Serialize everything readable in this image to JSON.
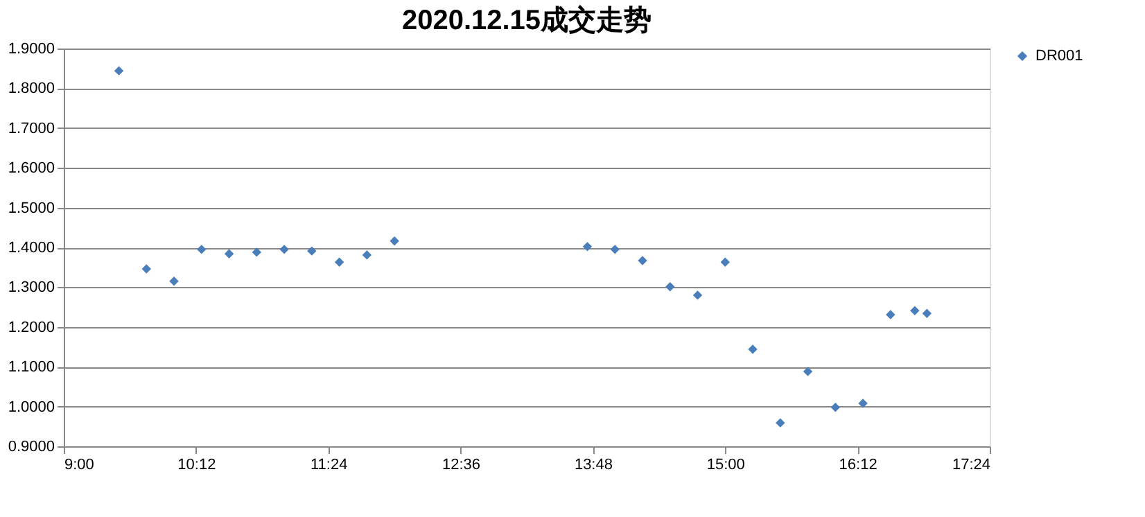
{
  "chart_data": {
    "type": "scatter",
    "title": "2020.12.15成交走势",
    "x": [
      9.5,
      9.75,
      10.0,
      10.25,
      10.5,
      10.75,
      11.0,
      11.25,
      11.5,
      11.75,
      12.0,
      13.75,
      14.0,
      14.25,
      14.5,
      14.75,
      15.0,
      15.25,
      15.5,
      15.75,
      16.0,
      16.25,
      16.5,
      16.72,
      16.83
    ],
    "series": [
      {
        "name": "DR001",
        "color": "#4a7ebb",
        "values": [
          1.844,
          1.346,
          1.315,
          1.395,
          1.384,
          1.388,
          1.395,
          1.391,
          1.363,
          1.381,
          1.416,
          1.402,
          1.395,
          1.367,
          1.301,
          1.28,
          1.363,
          1.144,
          0.959,
          1.088,
          0.998,
          1.008,
          1.231,
          1.241,
          1.234
        ]
      }
    ],
    "xlim": [
      9,
      17.4
    ],
    "xticks": [
      {
        "value": 9,
        "label": "9:00"
      },
      {
        "value": 10.2,
        "label": "10:12"
      },
      {
        "value": 11.4,
        "label": "11:24"
      },
      {
        "value": 12.6,
        "label": "12:36"
      },
      {
        "value": 13.8,
        "label": "13:48"
      },
      {
        "value": 15,
        "label": "15:00"
      },
      {
        "value": 16.2,
        "label": "16:12"
      },
      {
        "value": 17.4,
        "label": "17:24"
      }
    ],
    "ylim": [
      0.9,
      1.9
    ],
    "yticks": [
      {
        "value": 0.9,
        "label": "0.9000"
      },
      {
        "value": 1.0,
        "label": "1.0000"
      },
      {
        "value": 1.1,
        "label": "1.1000"
      },
      {
        "value": 1.2,
        "label": "1.2000"
      },
      {
        "value": 1.3,
        "label": "1.3000"
      },
      {
        "value": 1.4,
        "label": "1.4000"
      },
      {
        "value": 1.5,
        "label": "1.5000"
      },
      {
        "value": 1.6,
        "label": "1.6000"
      },
      {
        "value": 1.7,
        "label": "1.7000"
      },
      {
        "value": 1.8,
        "label": "1.8000"
      },
      {
        "value": 1.9,
        "label": "1.9000"
      }
    ],
    "grid": "y",
    "legend": "right",
    "marker": "diamond"
  }
}
